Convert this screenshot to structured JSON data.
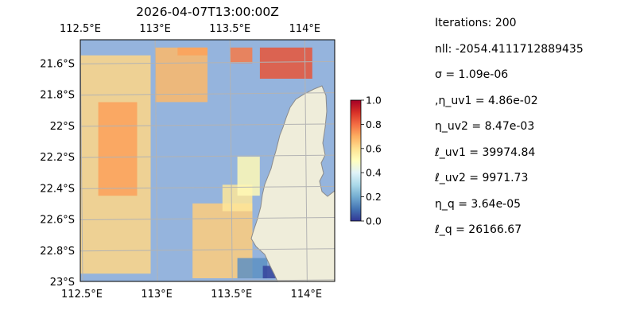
{
  "chart_data": {
    "type": "heatmap",
    "title": "2026-04-07T13:00:00Z",
    "x_axis": {
      "range": [
        112.5,
        114.2
      ],
      "ticks_top": [
        112.5,
        113.0,
        113.5,
        114.0
      ],
      "tick_labels_top": [
        "112.5°E",
        "113°E",
        "113.5°E",
        "114°E"
      ],
      "ticks_bottom": [
        112.5,
        113.0,
        113.5,
        114.0
      ],
      "tick_labels_bottom": [
        "112.5°E",
        "113°E",
        "113.5°E",
        "114°E"
      ]
    },
    "y_axis": {
      "range": [
        -23.0,
        -21.45
      ],
      "ticks": [
        -21.6,
        -21.8,
        -22.0,
        -22.2,
        -22.4,
        -22.6,
        -22.8,
        -23.0
      ],
      "tick_labels": [
        "21.6°S",
        "21.8°S",
        "22°S",
        "22.2°S",
        "22.4°S",
        "22.6°S",
        "22.8°S",
        "23°S"
      ]
    },
    "grid": true,
    "colorbar": {
      "range": [
        0.0,
        1.0
      ],
      "ticks": [
        0.0,
        0.2,
        0.4,
        0.6,
        0.8,
        1.0
      ],
      "tick_labels": [
        "0.0",
        "0.2",
        "0.4",
        "0.6",
        "0.8",
        "1.0"
      ],
      "colormap": "RdYlBu_r"
    },
    "colors": {
      "ocean": "#95b4dd",
      "land": "#efedda",
      "coast": "#8a8a8a",
      "grid": "#b3b3b3"
    },
    "field_regions": [
      {
        "lon": [
          112.5,
          112.97
        ],
        "lat": [
          -22.95,
          -21.55
        ],
        "value": 0.62
      },
      {
        "lon": [
          112.62,
          112.88
        ],
        "lat": [
          -22.45,
          -21.85
        ],
        "value": 0.72
      },
      {
        "lon": [
          113.0,
          113.35
        ],
        "lat": [
          -21.85,
          -21.5
        ],
        "value": 0.68
      },
      {
        "lon": [
          113.15,
          113.35
        ],
        "lat": [
          -21.55,
          -21.5
        ],
        "value": 0.72
      },
      {
        "lon": [
          113.5,
          113.65
        ],
        "lat": [
          -21.6,
          -21.5
        ],
        "value": 0.78
      },
      {
        "lon": [
          113.7,
          114.05
        ],
        "lat": [
          -21.7,
          -21.5
        ],
        "value": 0.84
      },
      {
        "lon": [
          113.25,
          113.65
        ],
        "lat": [
          -22.98,
          -22.5
        ],
        "value": 0.64
      },
      {
        "lon": [
          113.45,
          113.65
        ],
        "lat": [
          -22.55,
          -22.38
        ],
        "value": 0.58
      },
      {
        "lon": [
          113.55,
          113.7
        ],
        "lat": [
          -22.45,
          -22.2
        ],
        "value": 0.52
      },
      {
        "lon": [
          113.55,
          113.75
        ],
        "lat": [
          -22.98,
          -22.85
        ],
        "value": 0.15
      },
      {
        "lon": [
          113.72,
          113.82
        ],
        "lat": [
          -22.98,
          -22.9
        ],
        "value": 0.02
      }
    ],
    "annotation_lines": [
      "Iterations: 200",
      "nll: -2054.4111712889435",
      "σ = 1.09e-06",
      ",η_uv1 = 4.86e-02",
      "η_uv2 = 8.47e-03",
      "ℓ_uv1 = 39974.84",
      "ℓ_uv2 = 9971.73",
      "η_q = 3.64e-05",
      "ℓ_q = 26166.67"
    ]
  }
}
